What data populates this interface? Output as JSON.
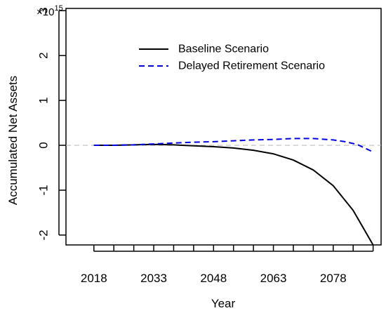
{
  "chart_data": {
    "type": "line",
    "xlabel": "Year",
    "ylabel": "Accumulated Net Assets",
    "y_multiplier": {
      "base": "×10",
      "exponent": "15"
    },
    "xlim": [
      2011,
      2090
    ],
    "ylim": [
      -2.22,
      3.05
    ],
    "x_ticks": [
      2018,
      2023,
      2028,
      2033,
      2038,
      2043,
      2048,
      2053,
      2058,
      2063,
      2068,
      2073,
      2078,
      2083,
      2088
    ],
    "x_tick_labels": [
      {
        "value": 2018,
        "label": "2018"
      },
      {
        "value": 2033,
        "label": "2033"
      },
      {
        "value": 2048,
        "label": "2048"
      },
      {
        "value": 2063,
        "label": "2063"
      },
      {
        "value": 2078,
        "label": "2078"
      }
    ],
    "y_ticks": [
      {
        "value": -2,
        "label": "-2"
      },
      {
        "value": -1,
        "label": "-1"
      },
      {
        "value": 0,
        "label": "0"
      },
      {
        "value": 1,
        "label": "1"
      },
      {
        "value": 2,
        "label": "2"
      },
      {
        "value": 3,
        "label": "3"
      }
    ],
    "reference_line": {
      "y": 0,
      "color": "#bbbbbb",
      "style": "dashed"
    },
    "legend": {
      "placement": "top-right",
      "entries": [
        {
          "series": 0,
          "label": "Baseline Scenario"
        },
        {
          "series": 1,
          "label": "Delayed Retirement Scenario"
        }
      ]
    },
    "series": [
      {
        "name": "Baseline Scenario",
        "color": "#000000",
        "style": "solid",
        "x": [
          2018,
          2023,
          2028,
          2033,
          2038,
          2043,
          2048,
          2053,
          2058,
          2063,
          2068,
          2073,
          2078,
          2083,
          2088
        ],
        "y": [
          0.0,
          0.0,
          0.01,
          0.02,
          0.01,
          -0.01,
          -0.03,
          -0.06,
          -0.11,
          -0.19,
          -0.33,
          -0.55,
          -0.9,
          -1.45,
          -2.22
        ]
      },
      {
        "name": "Delayed Retirement Scenario",
        "color": "#0000dd",
        "style": "dashed",
        "x": [
          2018,
          2023,
          2028,
          2033,
          2038,
          2043,
          2048,
          2053,
          2058,
          2063,
          2068,
          2073,
          2078,
          2081,
          2084,
          2088
        ],
        "y": [
          0.0,
          0.0,
          0.01,
          0.03,
          0.05,
          0.07,
          0.08,
          0.1,
          0.12,
          0.13,
          0.15,
          0.15,
          0.12,
          0.08,
          0.02,
          -0.15
        ]
      }
    ]
  }
}
